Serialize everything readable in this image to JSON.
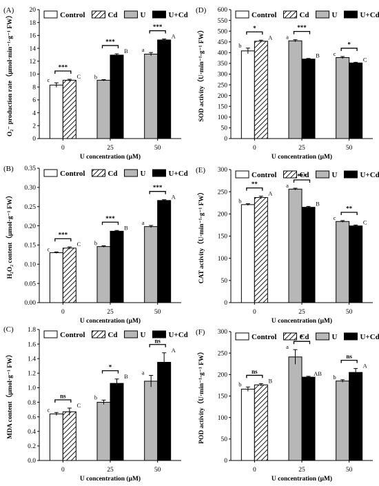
{
  "legend": [
    {
      "label": "Control",
      "pattern": "white"
    },
    {
      "label": "Cd",
      "pattern": "hatch"
    },
    {
      "label": "U",
      "pattern": "gray"
    },
    {
      "label": "U+Cd",
      "pattern": "black"
    }
  ],
  "colors": {
    "gray": "#b7b7b7",
    "black": "#000000",
    "white": "#ffffff"
  },
  "chart_data": [
    {
      "panel": "(A)",
      "type": "bar",
      "ylabel": "O₂⁻ production rate（μmol·min⁻¹·g⁻¹ FW）",
      "xlabel": "U concentration (μM)",
      "ylim": [
        0,
        20
      ],
      "yticks": [
        "0",
        "2",
        "4",
        "6",
        "8",
        "10",
        "12",
        "14",
        "16",
        "18",
        "20"
      ],
      "categories": [
        "0",
        "25",
        "50"
      ],
      "series": [
        {
          "name": "Control",
          "values": [
            8.3,
            null,
            null
          ],
          "err": [
            0.35,
            null,
            null
          ],
          "letters": [
            "c",
            null,
            null
          ]
        },
        {
          "name": "Cd",
          "values": [
            9.05,
            null,
            null
          ],
          "err": [
            0.15,
            null,
            null
          ],
          "letters": [
            "C",
            null,
            null
          ]
        },
        {
          "name": "U",
          "values": [
            null,
            9.05,
            13.1
          ],
          "err": [
            null,
            0.1,
            0.25
          ],
          "letters": [
            null,
            "b",
            "a"
          ]
        },
        {
          "name": "U+Cd",
          "values": [
            null,
            12.95,
            15.3
          ],
          "err": [
            null,
            0.2,
            0.15
          ],
          "letters": [
            null,
            "B",
            "A"
          ]
        }
      ],
      "significance": [
        "***",
        "***",
        "***"
      ]
    },
    {
      "panel": "(B)",
      "type": "bar",
      "ylabel": "H₂O₂ content（μmol·g⁻¹ FW）",
      "xlabel": "U concentration (μM)",
      "ylim": [
        0,
        0.35
      ],
      "yticks": [
        "0.00",
        "0.05",
        "0.10",
        "0.15",
        "0.20",
        "0.25",
        "0.30",
        "0.35"
      ],
      "categories": [
        "0",
        "25",
        "50"
      ],
      "series": [
        {
          "name": "Control",
          "values": [
            0.13,
            null,
            null
          ],
          "err": [
            0.002,
            null,
            null
          ],
          "letters": [
            "c",
            null,
            null
          ]
        },
        {
          "name": "Cd",
          "values": [
            0.142,
            null,
            null
          ],
          "err": [
            0.003,
            null,
            null
          ],
          "letters": [
            "C",
            null,
            null
          ]
        },
        {
          "name": "U",
          "values": [
            null,
            0.146,
            0.198
          ],
          "err": [
            null,
            0.002,
            0.003
          ],
          "letters": [
            null,
            "b",
            "a"
          ]
        },
        {
          "name": "U+Cd",
          "values": [
            null,
            0.186,
            0.266
          ],
          "err": [
            null,
            0.002,
            0.002
          ],
          "letters": [
            null,
            "B",
            "A"
          ]
        }
      ],
      "significance": [
        "***",
        "***",
        "***"
      ]
    },
    {
      "panel": "(C)",
      "type": "bar",
      "ylabel": "MDA content（μmol·g⁻¹ FW）",
      "xlabel": "U concentration (μM)",
      "ylim": [
        0,
        1.8
      ],
      "yticks": [
        "0.0",
        "0.2",
        "0.4",
        "0.6",
        "0.8",
        "1.0",
        "1.2",
        "1.4",
        "1.6",
        "1.8"
      ],
      "categories": [
        "0",
        "25",
        "50"
      ],
      "series": [
        {
          "name": "Control",
          "values": [
            0.64,
            null,
            null
          ],
          "err": [
            0.02,
            null,
            null
          ],
          "letters": [
            "c",
            null,
            null
          ]
        },
        {
          "name": "Cd",
          "values": [
            0.67,
            null,
            null
          ],
          "err": [
            0.05,
            null,
            null
          ],
          "letters": [
            "C",
            null,
            null
          ]
        },
        {
          "name": "U",
          "values": [
            null,
            0.8,
            1.09
          ],
          "err": [
            null,
            0.03,
            0.08
          ],
          "letters": [
            null,
            "b",
            "a"
          ]
        },
        {
          "name": "U+Cd",
          "values": [
            null,
            1.06,
            1.35
          ],
          "err": [
            null,
            0.06,
            0.13
          ],
          "letters": [
            null,
            "B",
            "A"
          ]
        }
      ],
      "significance": [
        "ns",
        "*",
        "ns"
      ]
    },
    {
      "panel": "(D)",
      "type": "bar",
      "ylabel": "SOD activity（U·min⁻¹·g⁻¹ FW）",
      "xlabel": "U concentration (μM)",
      "ylim": [
        0,
        600
      ],
      "yticks": [
        "0",
        "50",
        "100",
        "150",
        "200",
        "250",
        "300",
        "350",
        "400",
        "450",
        "500",
        "550",
        "600"
      ],
      "categories": [
        "0",
        "25",
        "50"
      ],
      "series": [
        {
          "name": "Control",
          "values": [
            408,
            null,
            null
          ],
          "err": [
            13,
            null,
            null
          ],
          "letters": [
            "b",
            null,
            null
          ]
        },
        {
          "name": "Cd",
          "values": [
            453,
            null,
            null
          ],
          "err": [
            5,
            null,
            null
          ],
          "letters": [
            "A",
            null,
            null
          ]
        },
        {
          "name": "U",
          "values": [
            null,
            455,
            377
          ],
          "err": [
            null,
            5,
            5
          ],
          "letters": [
            null,
            "a",
            "c"
          ]
        },
        {
          "name": "U+Cd",
          "values": [
            null,
            370,
            352
          ],
          "err": [
            null,
            3,
            3
          ],
          "letters": [
            null,
            "B",
            "C"
          ]
        }
      ],
      "significance": [
        "*",
        "***",
        "*"
      ]
    },
    {
      "panel": "(E)",
      "type": "bar",
      "ylabel": "CAT activity（U·min⁻¹·g⁻¹ FW）",
      "xlabel": "U concentration (μM)",
      "ylim": [
        0,
        300
      ],
      "yticks": [
        "0",
        "50",
        "100",
        "150",
        "200",
        "250",
        "300"
      ],
      "categories": [
        "0",
        "25",
        "50"
      ],
      "series": [
        {
          "name": "Control",
          "values": [
            221,
            null,
            null
          ],
          "err": [
            2,
            null,
            null
          ],
          "letters": [
            "b",
            null,
            null
          ]
        },
        {
          "name": "Cd",
          "values": [
            237,
            null,
            null
          ],
          "err": [
            3,
            null,
            null
          ],
          "letters": [
            "A",
            null,
            null
          ]
        },
        {
          "name": "U",
          "values": [
            null,
            256,
            183
          ],
          "err": [
            null,
            2,
            2
          ],
          "letters": [
            null,
            "a",
            "c"
          ]
        },
        {
          "name": "U+Cd",
          "values": [
            null,
            215,
            173
          ],
          "err": [
            null,
            2,
            2
          ],
          "letters": [
            null,
            "B",
            "C"
          ]
        }
      ],
      "significance": [
        "**",
        "***",
        "**"
      ]
    },
    {
      "panel": "(F)",
      "type": "bar",
      "ylabel": "POD activity（U·min⁻¹·g⁻¹ FW）",
      "xlabel": "U concentration (μM)",
      "ylim": [
        0,
        300
      ],
      "yticks": [
        "0",
        "50",
        "100",
        "150",
        "200",
        "250",
        "300"
      ],
      "categories": [
        "0",
        "25",
        "50"
      ],
      "series": [
        {
          "name": "Control",
          "values": [
            166,
            null,
            null
          ],
          "err": [
            5,
            null,
            null
          ],
          "letters": [
            "b",
            null,
            null
          ]
        },
        {
          "name": "Cd",
          "values": [
            176,
            null,
            null
          ],
          "err": [
            3,
            null,
            null
          ],
          "letters": [
            "B",
            null,
            null
          ]
        },
        {
          "name": "U",
          "values": [
            null,
            241,
            185
          ],
          "err": [
            null,
            17,
            3
          ],
          "letters": [
            null,
            "a",
            "b"
          ]
        },
        {
          "name": "U+Cd",
          "values": [
            null,
            194,
            205
          ],
          "err": [
            null,
            2,
            9
          ],
          "letters": [
            null,
            "AB",
            "A"
          ]
        }
      ],
      "significance": [
        "ns",
        "*",
        "ns"
      ]
    }
  ]
}
